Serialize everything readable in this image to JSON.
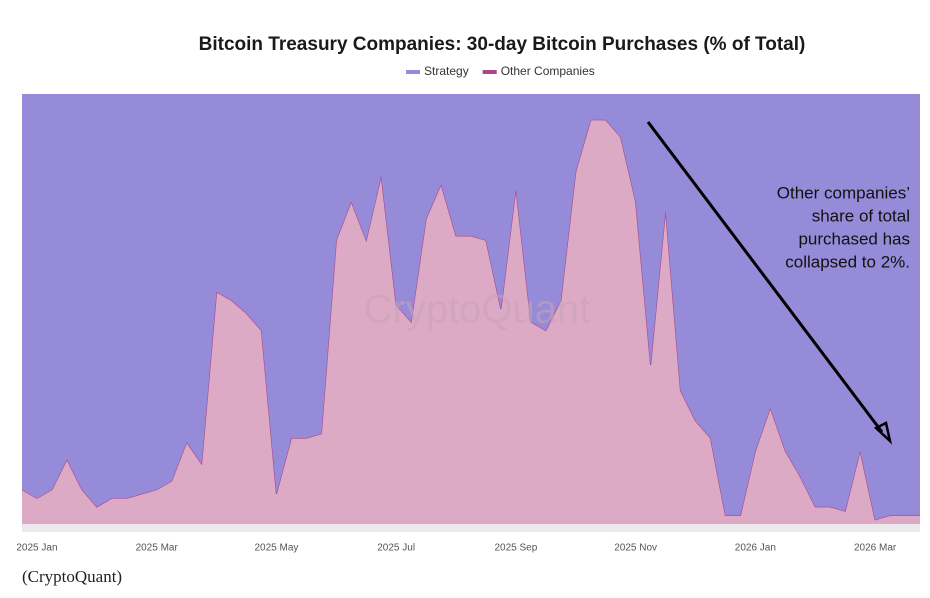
{
  "chart_data": {
    "type": "area",
    "stacking": "percent",
    "title": "Bitcoin Treasury Companies: 30-day Bitcoin Purchases (% of Total)",
    "categories": [
      null,
      "2025 Jan",
      null,
      null,
      null,
      null,
      null,
      null,
      null,
      "2025 Mar",
      null,
      null,
      null,
      null,
      null,
      null,
      null,
      "2025 May",
      null,
      null,
      null,
      null,
      null,
      null,
      null,
      "2025 Jul",
      null,
      null,
      null,
      null,
      null,
      null,
      null,
      "2025 Sep",
      null,
      null,
      null,
      null,
      null,
      null,
      null,
      "2025 Nov",
      null,
      null,
      null,
      null,
      null,
      null,
      null,
      "2026 Jan",
      null,
      null,
      null,
      null,
      null,
      null,
      null,
      "2026 Mar",
      null,
      null,
      null
    ],
    "series": [
      {
        "name": "Strategy",
        "color": "#968bd9",
        "values": [
          92,
          94,
          92,
          85,
          92,
          96,
          94,
          94,
          93,
          92,
          90,
          81,
          86,
          46,
          48,
          51,
          55,
          93,
          80,
          80,
          79,
          34,
          25,
          34,
          19,
          49,
          53,
          29,
          21,
          33,
          33,
          34,
          50,
          22,
          53,
          55,
          48,
          18,
          6,
          6,
          10,
          25,
          63,
          27,
          69,
          76,
          80,
          98,
          98,
          83,
          73,
          83,
          89,
          96,
          96,
          97,
          83,
          99,
          98,
          98,
          98
        ]
      },
      {
        "name": "Other Companies",
        "color": "#ddaac6",
        "line_color": "#a9498a",
        "values": [
          8,
          6,
          8,
          15,
          8,
          4,
          6,
          6,
          7,
          8,
          10,
          19,
          14,
          54,
          52,
          49,
          45,
          7,
          20,
          20,
          21,
          66,
          75,
          66,
          81,
          51,
          47,
          71,
          79,
          67,
          67,
          66,
          50,
          78,
          47,
          45,
          52,
          82,
          94,
          94,
          90,
          75,
          37,
          73,
          31,
          24,
          20,
          2,
          2,
          17,
          27,
          17,
          11,
          4,
          4,
          3,
          17,
          1,
          2,
          2,
          2
        ]
      }
    ],
    "watermark": "CryptoQuant",
    "annotation": [
      "Other companies’",
      "share of total",
      "purchased has",
      "collapsed to 2%."
    ],
    "source": "(CryptoQuant)"
  }
}
